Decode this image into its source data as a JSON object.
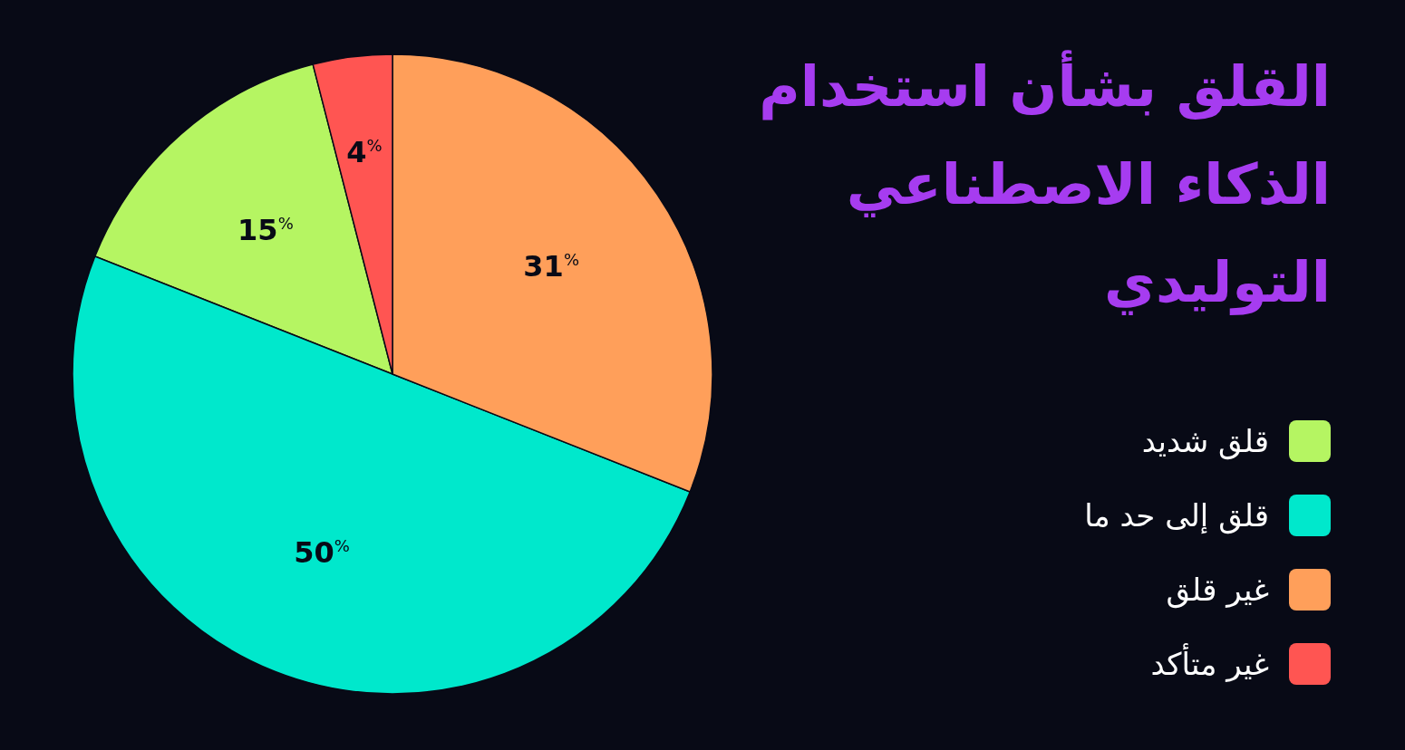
{
  "chart_data": {
    "type": "pie",
    "title": "القلق بشأن استخدام الذكاء الاصطناعي التوليدي",
    "categories": [
      "قلق شديد",
      "قلق إلى حد ما",
      "غير قلق",
      "غير متأكد"
    ],
    "values": [
      15,
      50,
      31,
      4
    ],
    "value_labels": [
      "15$^{%}$",
      "50$^{%}$",
      "31$^{%}$",
      "4$^{%}$"
    ],
    "colors": [
      "#b5f562",
      "#00e8cc",
      "#ff9f5a",
      "#ff5552"
    ],
    "legend": "right"
  }
}
